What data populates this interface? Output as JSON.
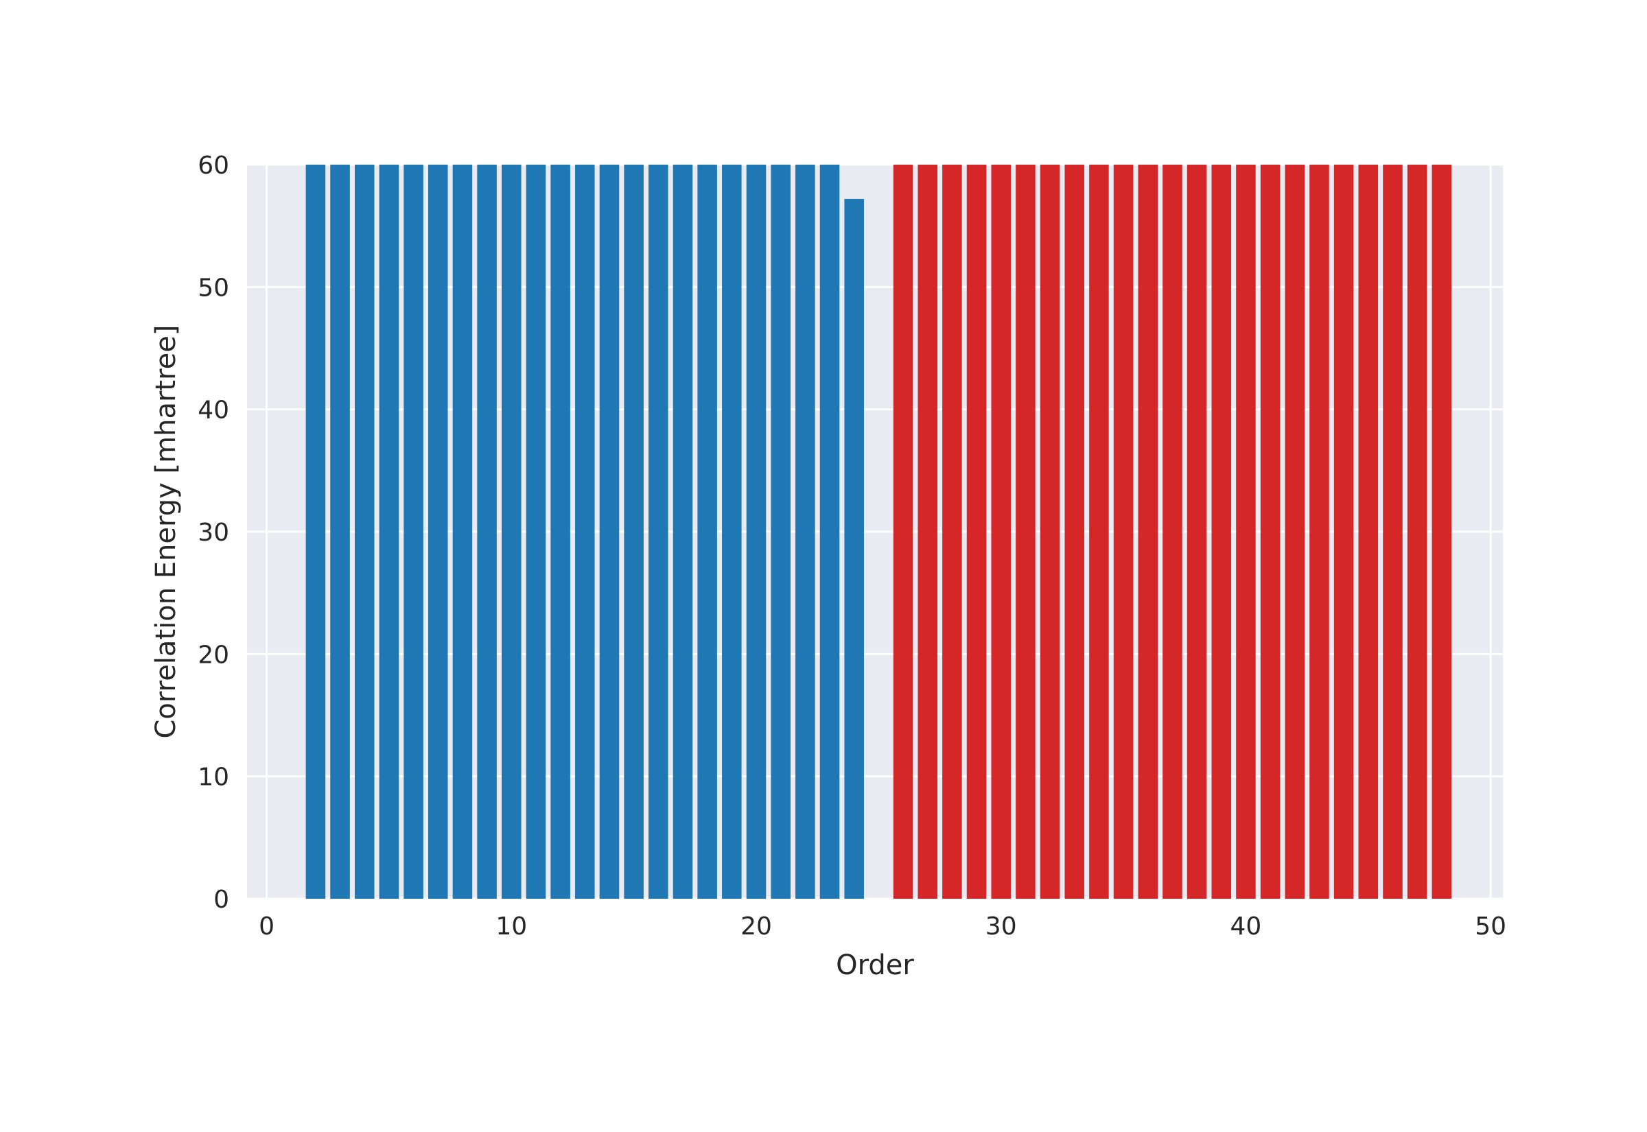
{
  "chart_data": {
    "type": "bar",
    "xlabel": "Order",
    "ylabel": "Correlation Energy [mhartree]",
    "title": "",
    "xlim": [
      -0.8,
      50.5
    ],
    "ylim": [
      0,
      60
    ],
    "xticks": [
      0,
      10,
      20,
      30,
      40,
      50
    ],
    "yticks": [
      0,
      10,
      20,
      30,
      40,
      50,
      60
    ],
    "grid": true,
    "legend": "none",
    "colors": {
      "background": "#EAEAF2",
      "grid": "#FFFFFF",
      "series_1": "#1F77B4",
      "series_2": "#D62728"
    },
    "series": [
      {
        "color": "#1F77B4",
        "x": [
          2,
          3,
          4,
          5,
          6,
          7,
          8,
          9,
          10,
          11,
          12,
          13,
          14,
          15,
          16,
          17,
          18,
          19,
          20,
          21,
          22,
          23,
          24
        ],
        "values": [
          60,
          60,
          60,
          60,
          60,
          60,
          60,
          60,
          60,
          60,
          60,
          60,
          60,
          60,
          60,
          60,
          60,
          60,
          60,
          60,
          60,
          60,
          57.2
        ]
      },
      {
        "color": "#D62728",
        "x": [
          26,
          27,
          28,
          29,
          30,
          31,
          32,
          33,
          34,
          35,
          36,
          37,
          38,
          39,
          40,
          41,
          42,
          43,
          44,
          45,
          46,
          47,
          48
        ],
        "values": [
          60,
          60,
          60,
          60,
          60,
          60,
          60,
          60,
          60,
          60,
          60,
          60,
          60,
          60,
          60,
          60,
          60,
          60,
          60,
          60,
          60,
          60,
          60
        ]
      }
    ]
  }
}
